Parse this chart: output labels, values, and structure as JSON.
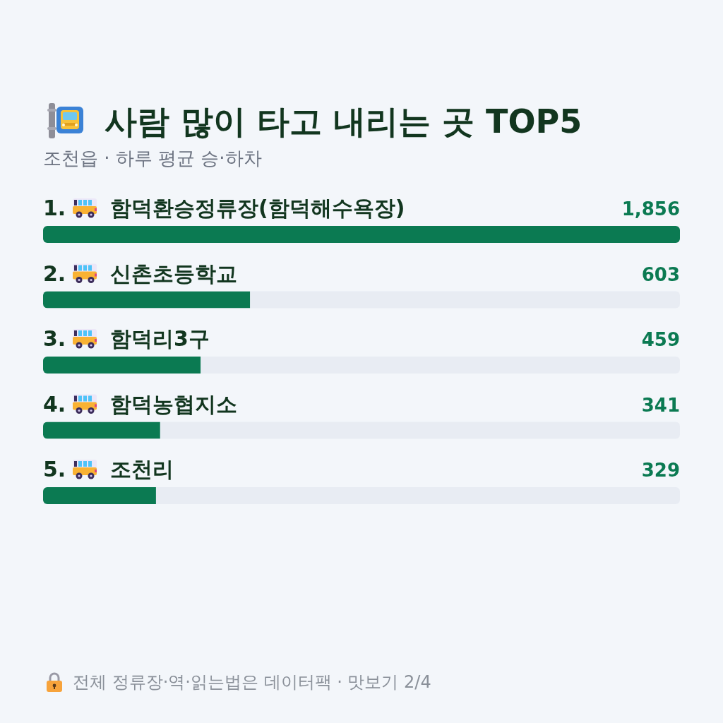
{
  "chart_data": {
    "type": "bar",
    "orientation": "horizontal",
    "title": "사람 많이 타고 내리는 곳 TOP5",
    "subtitle": "조천읍 · 하루 평균 승·하차",
    "categories": [
      "1. 함덕환승정류장(함덕해수욕장)",
      "2. 신촌초등학교",
      "3. 함덕리3구",
      "4. 함덕농협지소",
      "5. 조천리"
    ],
    "values": [
      1856,
      603,
      459,
      341,
      329
    ],
    "value_labels": [
      "1,856",
      "603",
      "459",
      "341",
      "329"
    ],
    "color": "#0b7a52",
    "tick_labels": "y",
    "annotations": [
      "전체 정류장·역·읽는법은 데이터팩 · 맛보기 2/4"
    ]
  }
}
